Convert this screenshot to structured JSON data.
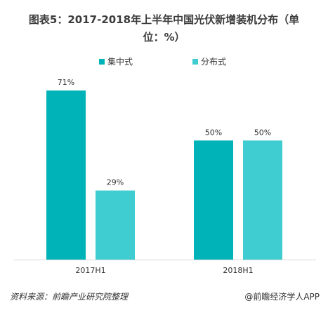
{
  "title_line1": "图表5：2017-2018年上半年中国光伏新增装机分布（单",
  "title_line2": "位：%）",
  "chart_data": {
    "type": "bar",
    "categories": [
      "2017H1",
      "2018H1"
    ],
    "series": [
      {
        "name": "集中式",
        "values": [
          71,
          50
        ],
        "labels": [
          "71%",
          "50%"
        ],
        "color": "#00b3b8"
      },
      {
        "name": "分布式",
        "values": [
          29,
          50
        ],
        "labels": [
          "29%",
          "50%"
        ],
        "color": "#3fcdd1"
      }
    ],
    "ylim": [
      0,
      71
    ],
    "legend": "top-center",
    "grid": false
  },
  "footer": {
    "source": "资料来源：前瞻产业研究院整理",
    "brand": "@前瞻经济学人APP"
  }
}
